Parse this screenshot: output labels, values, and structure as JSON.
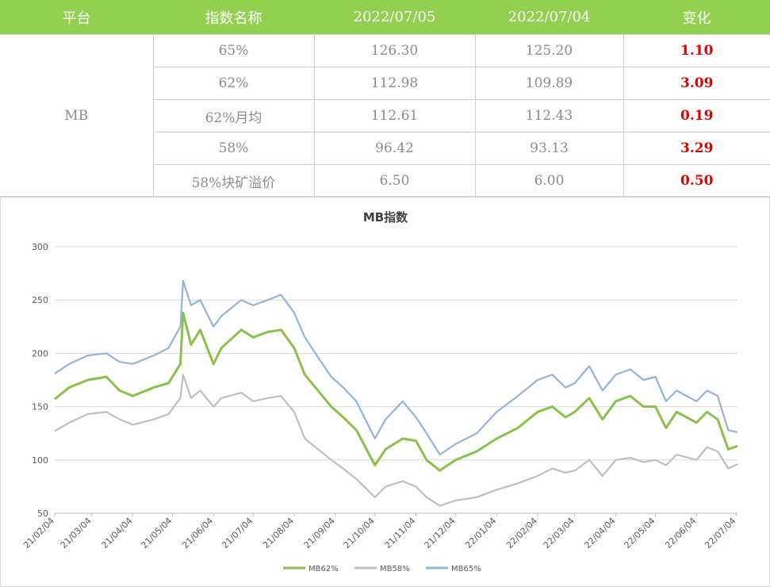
{
  "table": {
    "headers": [
      "平台",
      "指数名称",
      "2022/07/05",
      "2022/07/04",
      "变化"
    ],
    "platform": "MB",
    "rows": [
      {
        "name": "65%",
        "d1": "126.30",
        "d2": "125.20",
        "chg": "1.10"
      },
      {
        "name": "62%",
        "d1": "112.98",
        "d2": "109.89",
        "chg": "3.09"
      },
      {
        "name": "62%月均",
        "d1": "112.61",
        "d2": "112.43",
        "chg": "0.19"
      },
      {
        "name": "58%",
        "d1": "96.42",
        "d2": "93.13",
        "chg": "3.29"
      },
      {
        "name": "58%块矿溢价",
        "d1": "6.50",
        "d2": "6.00",
        "chg": "0.50"
      }
    ]
  },
  "chart_data": {
    "type": "line",
    "title": "MB指数",
    "xlabel": "",
    "ylabel": "",
    "ylim": [
      50,
      300
    ],
    "yticks": [
      50,
      100,
      150,
      200,
      250,
      300
    ],
    "grid": true,
    "legend_position": "bottom",
    "x_tick_labels": [
      "21/02/04",
      "21/03/04",
      "21/04/04",
      "21/05/04",
      "21/06/04",
      "21/07/04",
      "21/08/04",
      "21/09/04",
      "21/10/04",
      "21/11/04",
      "21/12/04",
      "22/01/04",
      "22/02/04",
      "22/03/04",
      "22/04/04",
      "22/05/04",
      "22/06/04",
      "22/07/04"
    ],
    "x_range": [
      "2021-02-04",
      "2022-07-05"
    ],
    "series": [
      {
        "name": "MB62%",
        "color": "#8cbf4d",
        "points": [
          [
            "2021-02-04",
            157
          ],
          [
            "2021-02-15",
            168
          ],
          [
            "2021-03-01",
            175
          ],
          [
            "2021-03-15",
            178
          ],
          [
            "2021-03-25",
            165
          ],
          [
            "2021-04-04",
            160
          ],
          [
            "2021-04-20",
            168
          ],
          [
            "2021-05-01",
            172
          ],
          [
            "2021-05-10",
            190
          ],
          [
            "2021-05-12",
            238
          ],
          [
            "2021-05-18",
            208
          ],
          [
            "2021-05-25",
            222
          ],
          [
            "2021-06-04",
            190
          ],
          [
            "2021-06-10",
            205
          ],
          [
            "2021-06-25",
            222
          ],
          [
            "2021-07-04",
            215
          ],
          [
            "2021-07-15",
            220
          ],
          [
            "2021-07-25",
            222
          ],
          [
            "2021-08-04",
            205
          ],
          [
            "2021-08-12",
            180
          ],
          [
            "2021-08-20",
            168
          ],
          [
            "2021-09-01",
            150
          ],
          [
            "2021-09-10",
            140
          ],
          [
            "2021-09-20",
            128
          ],
          [
            "2021-10-04",
            95
          ],
          [
            "2021-10-12",
            110
          ],
          [
            "2021-10-25",
            120
          ],
          [
            "2021-11-04",
            118
          ],
          [
            "2021-11-12",
            100
          ],
          [
            "2021-11-22",
            90
          ],
          [
            "2021-12-04",
            100
          ],
          [
            "2021-12-20",
            108
          ],
          [
            "2022-01-04",
            120
          ],
          [
            "2022-01-20",
            130
          ],
          [
            "2022-02-04",
            145
          ],
          [
            "2022-02-15",
            150
          ],
          [
            "2022-02-25",
            140
          ],
          [
            "2022-03-04",
            145
          ],
          [
            "2022-03-15",
            158
          ],
          [
            "2022-03-25",
            138
          ],
          [
            "2022-04-04",
            155
          ],
          [
            "2022-04-15",
            160
          ],
          [
            "2022-04-25",
            150
          ],
          [
            "2022-05-04",
            150
          ],
          [
            "2022-05-12",
            130
          ],
          [
            "2022-05-20",
            145
          ],
          [
            "2022-06-04",
            135
          ],
          [
            "2022-06-12",
            145
          ],
          [
            "2022-06-20",
            138
          ],
          [
            "2022-06-28",
            110
          ],
          [
            "2022-07-05",
            113
          ]
        ]
      },
      {
        "name": "MB58%",
        "color": "#bfbfbf",
        "points": [
          [
            "2021-02-04",
            127
          ],
          [
            "2021-02-15",
            135
          ],
          [
            "2021-03-01",
            143
          ],
          [
            "2021-03-15",
            145
          ],
          [
            "2021-03-25",
            138
          ],
          [
            "2021-04-04",
            133
          ],
          [
            "2021-04-20",
            138
          ],
          [
            "2021-05-01",
            143
          ],
          [
            "2021-05-10",
            158
          ],
          [
            "2021-05-12",
            180
          ],
          [
            "2021-05-18",
            158
          ],
          [
            "2021-05-25",
            165
          ],
          [
            "2021-06-04",
            150
          ],
          [
            "2021-06-10",
            158
          ],
          [
            "2021-06-25",
            163
          ],
          [
            "2021-07-04",
            155
          ],
          [
            "2021-07-15",
            158
          ],
          [
            "2021-07-25",
            160
          ],
          [
            "2021-08-04",
            145
          ],
          [
            "2021-08-12",
            120
          ],
          [
            "2021-08-20",
            112
          ],
          [
            "2021-09-01",
            100
          ],
          [
            "2021-09-10",
            92
          ],
          [
            "2021-09-20",
            82
          ],
          [
            "2021-10-04",
            65
          ],
          [
            "2021-10-12",
            75
          ],
          [
            "2021-10-25",
            80
          ],
          [
            "2021-11-04",
            75
          ],
          [
            "2021-11-12",
            65
          ],
          [
            "2021-11-22",
            57
          ],
          [
            "2021-12-04",
            62
          ],
          [
            "2021-12-20",
            65
          ],
          [
            "2022-01-04",
            72
          ],
          [
            "2022-01-20",
            78
          ],
          [
            "2022-02-04",
            85
          ],
          [
            "2022-02-15",
            92
          ],
          [
            "2022-02-25",
            88
          ],
          [
            "2022-03-04",
            90
          ],
          [
            "2022-03-15",
            100
          ],
          [
            "2022-03-25",
            85
          ],
          [
            "2022-04-04",
            100
          ],
          [
            "2022-04-15",
            102
          ],
          [
            "2022-04-25",
            98
          ],
          [
            "2022-05-04",
            100
          ],
          [
            "2022-05-12",
            95
          ],
          [
            "2022-05-20",
            105
          ],
          [
            "2022-06-04",
            100
          ],
          [
            "2022-06-12",
            112
          ],
          [
            "2022-06-20",
            108
          ],
          [
            "2022-06-28",
            92
          ],
          [
            "2022-07-05",
            96
          ]
        ]
      },
      {
        "name": "MB65%",
        "color": "#95b3d7",
        "points": [
          [
            "2021-02-04",
            181
          ],
          [
            "2021-02-15",
            190
          ],
          [
            "2021-03-01",
            198
          ],
          [
            "2021-03-15",
            200
          ],
          [
            "2021-03-25",
            192
          ],
          [
            "2021-04-04",
            190
          ],
          [
            "2021-04-20",
            198
          ],
          [
            "2021-05-01",
            205
          ],
          [
            "2021-05-10",
            225
          ],
          [
            "2021-05-12",
            268
          ],
          [
            "2021-05-18",
            245
          ],
          [
            "2021-05-25",
            250
          ],
          [
            "2021-06-04",
            225
          ],
          [
            "2021-06-10",
            235
          ],
          [
            "2021-06-25",
            250
          ],
          [
            "2021-07-04",
            245
          ],
          [
            "2021-07-15",
            250
          ],
          [
            "2021-07-25",
            255
          ],
          [
            "2021-08-04",
            238
          ],
          [
            "2021-08-12",
            215
          ],
          [
            "2021-08-20",
            200
          ],
          [
            "2021-09-01",
            178
          ],
          [
            "2021-09-10",
            168
          ],
          [
            "2021-09-20",
            155
          ],
          [
            "2021-10-04",
            120
          ],
          [
            "2021-10-12",
            138
          ],
          [
            "2021-10-25",
            155
          ],
          [
            "2021-11-04",
            140
          ],
          [
            "2021-11-12",
            125
          ],
          [
            "2021-11-22",
            105
          ],
          [
            "2021-12-04",
            115
          ],
          [
            "2021-12-20",
            125
          ],
          [
            "2022-01-04",
            145
          ],
          [
            "2022-01-20",
            160
          ],
          [
            "2022-02-04",
            175
          ],
          [
            "2022-02-15",
            180
          ],
          [
            "2022-02-25",
            168
          ],
          [
            "2022-03-04",
            172
          ],
          [
            "2022-03-15",
            188
          ],
          [
            "2022-03-25",
            165
          ],
          [
            "2022-04-04",
            180
          ],
          [
            "2022-04-15",
            185
          ],
          [
            "2022-04-25",
            175
          ],
          [
            "2022-05-04",
            178
          ],
          [
            "2022-05-12",
            155
          ],
          [
            "2022-05-20",
            165
          ],
          [
            "2022-06-04",
            155
          ],
          [
            "2022-06-12",
            165
          ],
          [
            "2022-06-20",
            160
          ],
          [
            "2022-06-28",
            128
          ],
          [
            "2022-07-05",
            126
          ]
        ]
      }
    ]
  }
}
